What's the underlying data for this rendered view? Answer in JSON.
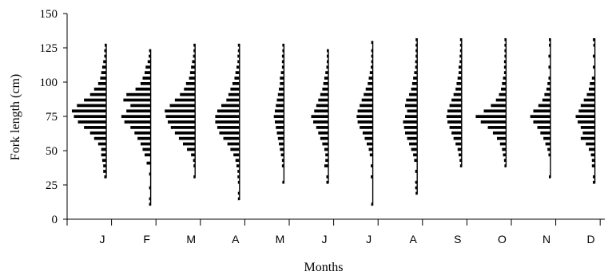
{
  "chart_data": {
    "type": "histogram-panels",
    "title": "",
    "xlabel": "Months",
    "ylabel": "Fork length (cm)",
    "ylim": [
      0,
      150
    ],
    "yticks": [
      0,
      25,
      50,
      75,
      100,
      125,
      150
    ],
    "categories": [
      "J",
      "F",
      "M",
      "A",
      "M",
      "J",
      "J",
      "A",
      "S",
      "O",
      "N",
      "D"
    ],
    "bin_width_cm": 2,
    "frequency_scale_max": 30,
    "panels": [
      {
        "month": "J",
        "bins": [
          [
            30,
            2
          ],
          [
            34,
            3
          ],
          [
            38,
            3
          ],
          [
            42,
            4
          ],
          [
            46,
            5
          ],
          [
            50,
            5
          ],
          [
            54,
            8
          ],
          [
            58,
            12
          ],
          [
            62,
            16
          ],
          [
            66,
            22
          ],
          [
            70,
            28
          ],
          [
            74,
            32
          ],
          [
            78,
            34
          ],
          [
            82,
            29
          ],
          [
            86,
            22
          ],
          [
            90,
            16
          ],
          [
            94,
            12
          ],
          [
            98,
            8
          ],
          [
            102,
            6
          ],
          [
            106,
            5
          ],
          [
            110,
            4
          ],
          [
            114,
            3
          ],
          [
            118,
            2
          ],
          [
            122,
            2
          ],
          [
            126,
            1
          ]
        ]
      },
      {
        "month": "F",
        "bins": [
          [
            10,
            1
          ],
          [
            14,
            1
          ],
          [
            22,
            1
          ],
          [
            32,
            1
          ],
          [
            40,
            4
          ],
          [
            46,
            6
          ],
          [
            50,
            8
          ],
          [
            54,
            10
          ],
          [
            58,
            13
          ],
          [
            62,
            16
          ],
          [
            66,
            20
          ],
          [
            70,
            26
          ],
          [
            74,
            29
          ],
          [
            78,
            24
          ],
          [
            82,
            20
          ],
          [
            86,
            27
          ],
          [
            90,
            24
          ],
          [
            94,
            15
          ],
          [
            98,
            10
          ],
          [
            102,
            8
          ],
          [
            106,
            6
          ],
          [
            110,
            5
          ],
          [
            114,
            3
          ],
          [
            118,
            2
          ],
          [
            122,
            1
          ]
        ]
      },
      {
        "month": "M",
        "bins": [
          [
            30,
            1
          ],
          [
            38,
            1
          ],
          [
            42,
            2
          ],
          [
            46,
            4
          ],
          [
            50,
            8
          ],
          [
            54,
            12
          ],
          [
            58,
            16
          ],
          [
            62,
            20
          ],
          [
            66,
            24
          ],
          [
            70,
            27
          ],
          [
            74,
            29
          ],
          [
            78,
            30
          ],
          [
            82,
            25
          ],
          [
            86,
            20
          ],
          [
            90,
            15
          ],
          [
            94,
            11
          ],
          [
            98,
            9
          ],
          [
            102,
            6
          ],
          [
            106,
            5
          ],
          [
            110,
            4
          ],
          [
            114,
            3
          ],
          [
            118,
            2
          ],
          [
            122,
            1
          ],
          [
            126,
            1
          ]
        ]
      },
      {
        "month": "A",
        "bins": [
          [
            14,
            1
          ],
          [
            18,
            1
          ],
          [
            26,
            1
          ],
          [
            30,
            2
          ],
          [
            34,
            2
          ],
          [
            38,
            3
          ],
          [
            42,
            4
          ],
          [
            46,
            6
          ],
          [
            50,
            9
          ],
          [
            54,
            12
          ],
          [
            58,
            16
          ],
          [
            62,
            20
          ],
          [
            66,
            22
          ],
          [
            70,
            24
          ],
          [
            74,
            24
          ],
          [
            78,
            22
          ],
          [
            82,
            18
          ],
          [
            86,
            13
          ],
          [
            90,
            11
          ],
          [
            94,
            9
          ],
          [
            98,
            7
          ],
          [
            102,
            5
          ],
          [
            106,
            4
          ],
          [
            110,
            3
          ],
          [
            114,
            2
          ],
          [
            118,
            2
          ],
          [
            122,
            1
          ],
          [
            126,
            1
          ]
        ]
      },
      {
        "month": "M",
        "bins": [
          [
            26,
            1
          ],
          [
            38,
            2
          ],
          [
            42,
            2
          ],
          [
            46,
            3
          ],
          [
            50,
            4
          ],
          [
            54,
            5
          ],
          [
            58,
            6
          ],
          [
            62,
            7
          ],
          [
            66,
            8
          ],
          [
            70,
            9
          ],
          [
            74,
            10
          ],
          [
            78,
            9
          ],
          [
            82,
            8
          ],
          [
            86,
            7
          ],
          [
            90,
            6
          ],
          [
            94,
            5
          ],
          [
            98,
            4
          ],
          [
            102,
            4
          ],
          [
            106,
            3
          ],
          [
            110,
            2
          ],
          [
            114,
            2
          ],
          [
            118,
            2
          ],
          [
            122,
            1
          ],
          [
            126,
            1
          ]
        ]
      },
      {
        "month": "J",
        "bins": [
          [
            26,
            2
          ],
          [
            30,
            2
          ],
          [
            38,
            4
          ],
          [
            42,
            3
          ],
          [
            46,
            3
          ],
          [
            50,
            4
          ],
          [
            54,
            6
          ],
          [
            58,
            8
          ],
          [
            62,
            10
          ],
          [
            66,
            12
          ],
          [
            70,
            15
          ],
          [
            74,
            17
          ],
          [
            78,
            14
          ],
          [
            82,
            12
          ],
          [
            86,
            10
          ],
          [
            90,
            8
          ],
          [
            94,
            6
          ],
          [
            98,
            5
          ],
          [
            102,
            4
          ],
          [
            106,
            3
          ],
          [
            110,
            2
          ],
          [
            114,
            1
          ],
          [
            118,
            1
          ],
          [
            122,
            1
          ]
        ]
      },
      {
        "month": "J",
        "bins": [
          [
            10,
            1
          ],
          [
            30,
            2
          ],
          [
            38,
            2
          ],
          [
            46,
            3
          ],
          [
            50,
            4
          ],
          [
            54,
            6
          ],
          [
            58,
            8
          ],
          [
            62,
            10
          ],
          [
            66,
            13
          ],
          [
            70,
            15
          ],
          [
            74,
            16
          ],
          [
            78,
            15
          ],
          [
            82,
            13
          ],
          [
            86,
            11
          ],
          [
            90,
            9
          ],
          [
            94,
            7
          ],
          [
            98,
            5
          ],
          [
            102,
            4
          ],
          [
            106,
            3
          ],
          [
            110,
            2
          ],
          [
            114,
            1
          ],
          [
            118,
            1
          ],
          [
            122,
            1
          ],
          [
            128,
            1
          ]
        ]
      },
      {
        "month": "A",
        "bins": [
          [
            18,
            1
          ],
          [
            22,
            2
          ],
          [
            26,
            2
          ],
          [
            34,
            2
          ],
          [
            42,
            3
          ],
          [
            46,
            4
          ],
          [
            50,
            6
          ],
          [
            54,
            8
          ],
          [
            58,
            10
          ],
          [
            62,
            12
          ],
          [
            66,
            13
          ],
          [
            70,
            14
          ],
          [
            74,
            12
          ],
          [
            78,
            10
          ],
          [
            82,
            12
          ],
          [
            86,
            11
          ],
          [
            90,
            8
          ],
          [
            94,
            6
          ],
          [
            98,
            5
          ],
          [
            102,
            4
          ],
          [
            106,
            3
          ],
          [
            110,
            2
          ],
          [
            114,
            2
          ],
          [
            118,
            1
          ],
          [
            122,
            1
          ],
          [
            126,
            1
          ],
          [
            130,
            1
          ]
        ]
      },
      {
        "month": "S",
        "bins": [
          [
            38,
            1
          ],
          [
            42,
            2
          ],
          [
            46,
            3
          ],
          [
            50,
            4
          ],
          [
            54,
            6
          ],
          [
            58,
            8
          ],
          [
            62,
            10
          ],
          [
            66,
            12
          ],
          [
            70,
            14
          ],
          [
            74,
            15
          ],
          [
            78,
            14
          ],
          [
            82,
            12
          ],
          [
            86,
            10
          ],
          [
            90,
            8
          ],
          [
            94,
            6
          ],
          [
            98,
            5
          ],
          [
            102,
            4
          ],
          [
            106,
            3
          ],
          [
            110,
            3
          ],
          [
            114,
            2
          ],
          [
            118,
            2
          ],
          [
            122,
            1
          ],
          [
            126,
            1
          ],
          [
            130,
            1
          ]
        ]
      },
      {
        "month": "O",
        "bins": [
          [
            38,
            1
          ],
          [
            42,
            2
          ],
          [
            46,
            3
          ],
          [
            50,
            4
          ],
          [
            54,
            6
          ],
          [
            58,
            9
          ],
          [
            62,
            13
          ],
          [
            66,
            18
          ],
          [
            70,
            25
          ],
          [
            74,
            30
          ],
          [
            78,
            22
          ],
          [
            82,
            15
          ],
          [
            86,
            10
          ],
          [
            90,
            7
          ],
          [
            94,
            5
          ],
          [
            98,
            4
          ],
          [
            102,
            3
          ],
          [
            106,
            2
          ],
          [
            110,
            2
          ],
          [
            114,
            2
          ],
          [
            118,
            1
          ],
          [
            122,
            1
          ],
          [
            126,
            1
          ],
          [
            130,
            1
          ]
        ]
      },
      {
        "month": "N",
        "bins": [
          [
            30,
            1
          ],
          [
            46,
            2
          ],
          [
            50,
            3
          ],
          [
            54,
            5
          ],
          [
            58,
            7
          ],
          [
            62,
            10
          ],
          [
            66,
            13
          ],
          [
            70,
            17
          ],
          [
            74,
            20
          ],
          [
            78,
            17
          ],
          [
            82,
            12
          ],
          [
            86,
            8
          ],
          [
            90,
            6
          ],
          [
            94,
            4
          ],
          [
            98,
            3
          ],
          [
            102,
            2
          ],
          [
            110,
            2
          ],
          [
            118,
            2
          ],
          [
            126,
            1
          ],
          [
            130,
            1
          ]
        ]
      },
      {
        "month": "D",
        "bins": [
          [
            26,
            2
          ],
          [
            30,
            2
          ],
          [
            38,
            3
          ],
          [
            42,
            3
          ],
          [
            46,
            4
          ],
          [
            50,
            6
          ],
          [
            54,
            9
          ],
          [
            58,
            14
          ],
          [
            62,
            12
          ],
          [
            66,
            14
          ],
          [
            70,
            17
          ],
          [
            74,
            19
          ],
          [
            78,
            16
          ],
          [
            82,
            14
          ],
          [
            86,
            11
          ],
          [
            90,
            8
          ],
          [
            94,
            6
          ],
          [
            98,
            5
          ],
          [
            102,
            3
          ],
          [
            110,
            2
          ],
          [
            118,
            2
          ],
          [
            126,
            1
          ],
          [
            130,
            2
          ]
        ]
      }
    ]
  }
}
